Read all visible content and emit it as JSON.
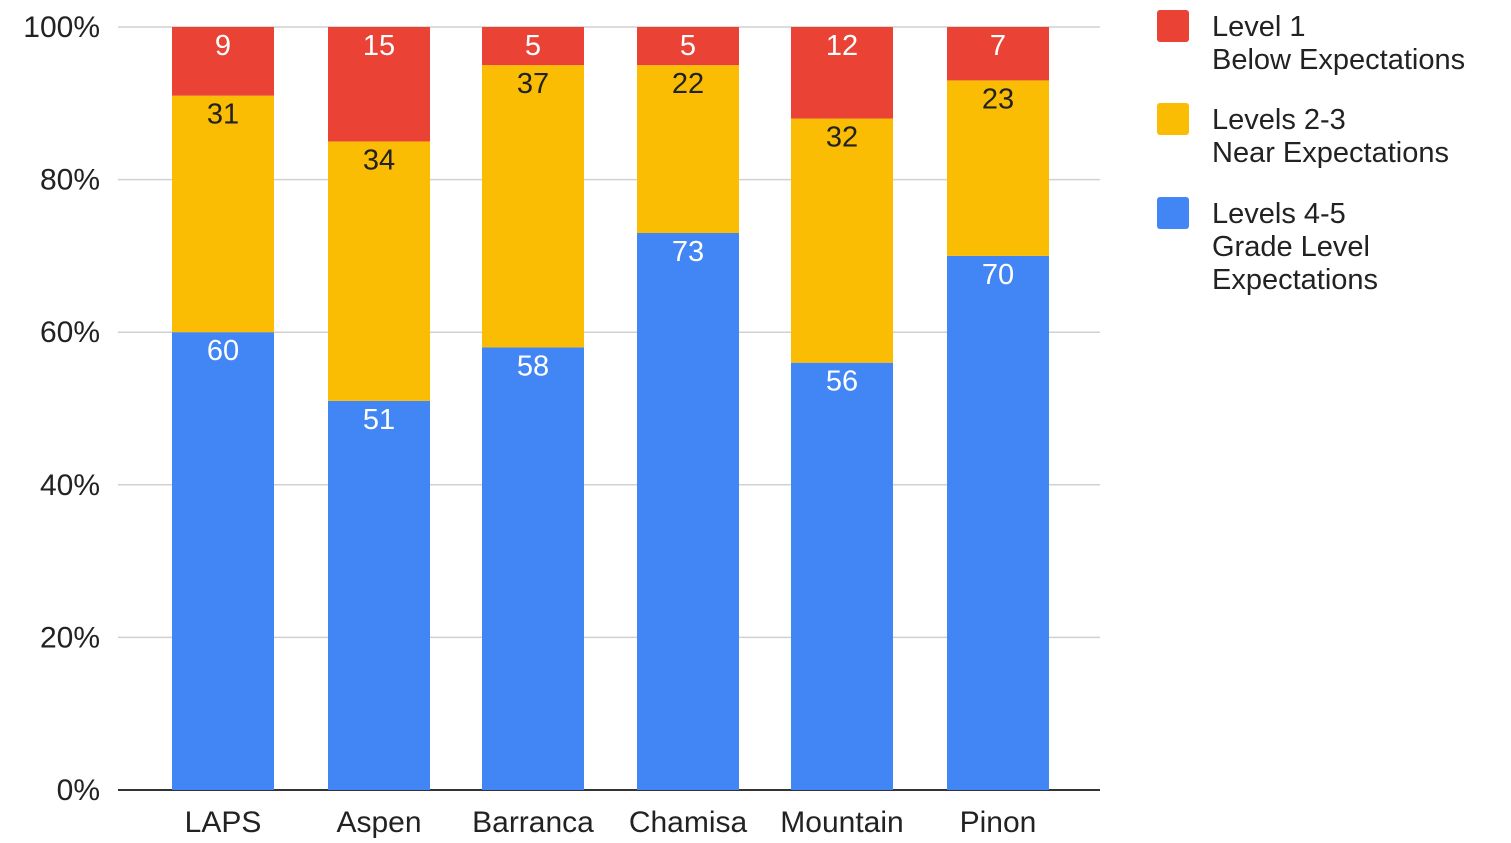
{
  "chart_data": {
    "type": "bar",
    "stacked": true,
    "percent_stacked": true,
    "categories": [
      "LAPS",
      "Aspen",
      "Barranca",
      "Chamisa",
      "Mountain",
      "Pinon"
    ],
    "series": [
      {
        "name": "Levels 4-5 Grade Level Expectations",
        "legend_lines": [
          "Levels 4-5",
          "Grade Level",
          "Expectations"
        ],
        "color": "#4285F4",
        "label_color": "#ffffff",
        "values": [
          60,
          51,
          58,
          73,
          56,
          70
        ]
      },
      {
        "name": "Levels 2-3 Near Expectations",
        "legend_lines": [
          "Levels 2-3",
          "Near Expectations"
        ],
        "color": "#FBBC04",
        "label_color": "#222222",
        "values": [
          31,
          34,
          37,
          22,
          32,
          23
        ]
      },
      {
        "name": "Level 1 Below Expectations",
        "legend_lines": [
          "Level 1",
          "Below Expectations"
        ],
        "color": "#EA4335",
        "label_color": "#ffffff",
        "values": [
          9,
          15,
          5,
          5,
          12,
          7
        ]
      }
    ],
    "y_ticks": [
      "0%",
      "20%",
      "40%",
      "60%",
      "80%",
      "100%"
    ],
    "ylim": [
      0,
      100
    ],
    "title": "",
    "xlabel": "",
    "ylabel": "",
    "grid": true,
    "legend_position": "right"
  }
}
